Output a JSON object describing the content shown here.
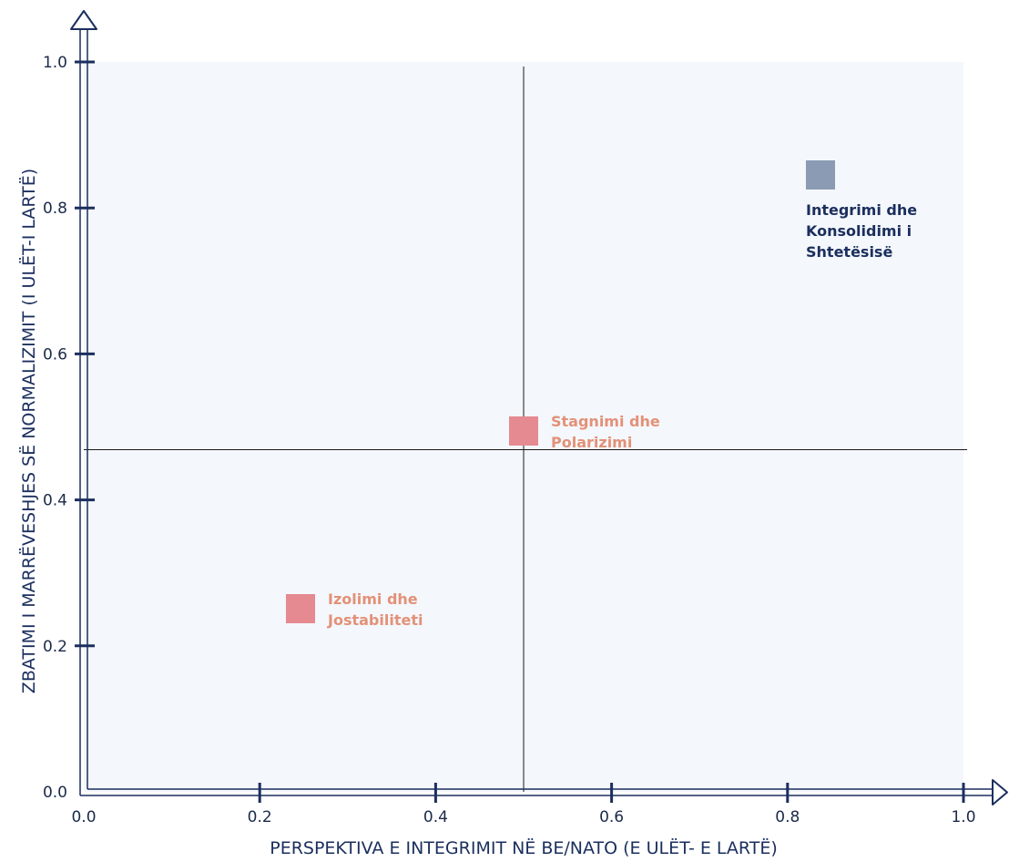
{
  "chart_data": {
    "type": "scatter",
    "title": "",
    "xlabel": "PERSPEKTIVA E INTEGRIMIT NË BE/NATO (E ULËT- E LARTË)",
    "ylabel": "ZBATIMI I MARRËVESHJES SË NORMALIZIMIT (I ULËT-I LARTË)",
    "xlim": [
      0,
      1
    ],
    "ylim": [
      0,
      1
    ],
    "x_ticks": [
      "0.0",
      "0.2",
      "0.4",
      "0.6",
      "0.8",
      "1.0"
    ],
    "y_ticks": [
      "0.0",
      "0.2",
      "0.4",
      "0.6",
      "0.8",
      "1.0"
    ],
    "quadrant_lines": {
      "x": 0.5,
      "y": 0.5
    },
    "grid": false,
    "points": [
      {
        "label_lines": [
          "Izolimi dhe",
          "Jostabiliteti"
        ],
        "x": 0.25,
        "y": 0.25,
        "color": "#e48a90",
        "label_color": "#e39178"
      },
      {
        "label_lines": [
          "Stagnimi dhe",
          "Polarizimi"
        ],
        "x": 0.5,
        "y": 0.5,
        "color": "#e48a90",
        "label_color": "#e39178"
      },
      {
        "label_lines": [
          "Integrimi dhe",
          "Konsolidimi i",
          "Shtetësisë"
        ],
        "x": 0.84,
        "y": 0.84,
        "color": "#8b9bb4",
        "label_color": "#1b2f5e"
      }
    ],
    "colors": {
      "axis": "#1b2f5e",
      "plot_background": "#f4f7fb",
      "quadrant_line": "#1a1a1a"
    }
  }
}
